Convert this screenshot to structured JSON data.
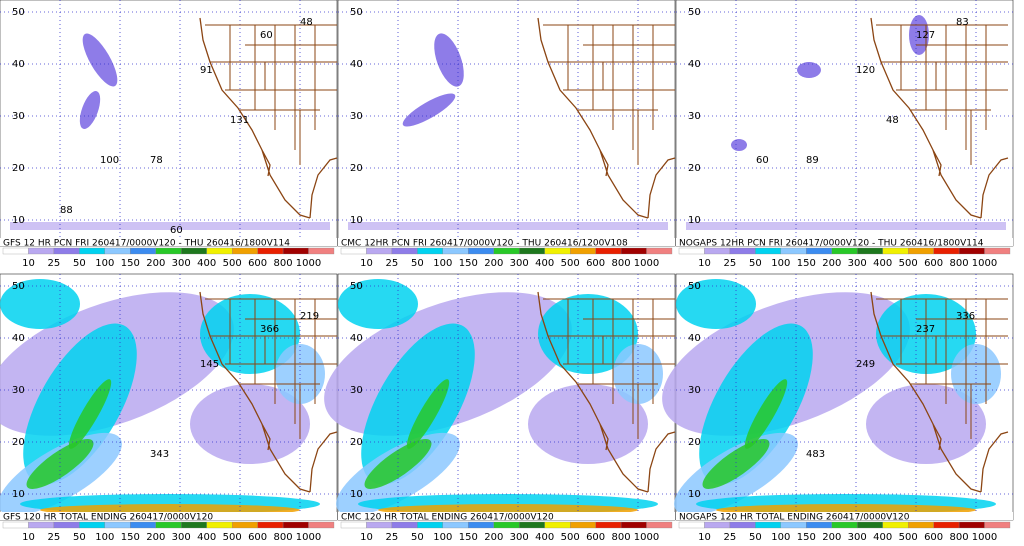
{
  "panels": [
    {
      "caption": "GFS 12 HR PCN FRI 260417/0000V120 - THU 260416/1800V114",
      "annotations": [
        "48",
        "60",
        "78",
        "91",
        "131",
        "100",
        "88",
        "60"
      ]
    },
    {
      "caption": "CMC 12HR PCN FRI 260417/0000V120 - THU 260416/1200V108",
      "annotations": []
    },
    {
      "caption": "NOGAPS 12HR PCN FRI 260417/0000V120 - THU 260416/1800V114",
      "annotations": [
        "83",
        "127",
        "89",
        "120",
        "48",
        "60"
      ]
    },
    {
      "caption": "GFS 120 HR TOTAL ENDING 260417/0000V120",
      "annotations": [
        "219",
        "366",
        "343",
        "145"
      ]
    },
    {
      "caption": "CMC 120 HR TOTAL ENDING 260417/0000V120",
      "annotations": []
    },
    {
      "caption": "NOGAPS 120 HR TOTAL ENDING 260417/0000V120",
      "annotations": [
        "336",
        "237",
        "483",
        "249"
      ]
    }
  ],
  "lat_labels": [
    "50",
    "40",
    "30",
    "20",
    "10"
  ],
  "scale": {
    "labels": [
      "10",
      "25",
      "50",
      "100",
      "150",
      "200",
      "300",
      "400",
      "500",
      "600",
      "800",
      "1000"
    ],
    "colors": [
      "#ffffff",
      "#b9a8f0",
      "#8e7ce8",
      "#00d2f0",
      "#8cc8ff",
      "#3c8cf0",
      "#28c828",
      "#1e781e",
      "#f0f000",
      "#f0a000",
      "#e82000",
      "#a00000",
      "#f08080"
    ]
  }
}
